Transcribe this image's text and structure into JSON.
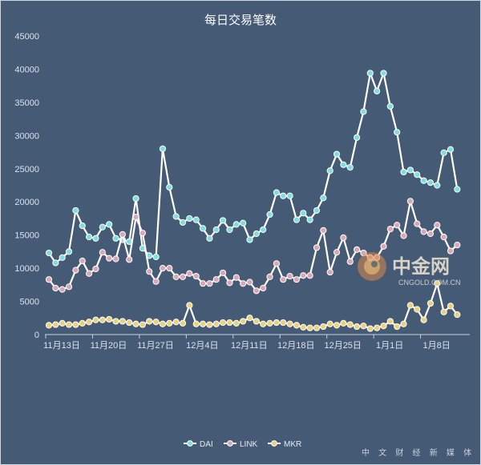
{
  "chart_data": {
    "type": "line",
    "title": "每日交易笔数",
    "xlabel": "",
    "ylabel": "",
    "ylim": [
      0,
      45000
    ],
    "yticks": [
      0,
      5000,
      10000,
      15000,
      20000,
      25000,
      30000,
      35000,
      40000,
      45000
    ],
    "xtick_labels": [
      {
        "index": 0,
        "label": "11月13日"
      },
      {
        "index": 7,
        "label": "11月20日"
      },
      {
        "index": 14,
        "label": "11月27日"
      },
      {
        "index": 21,
        "label": "12月4日"
      },
      {
        "index": 28,
        "label": "12月11日"
      },
      {
        "index": 35,
        "label": "12月18日"
      },
      {
        "index": 42,
        "label": "12月25日"
      },
      {
        "index": 49,
        "label": "1月1日"
      },
      {
        "index": 56,
        "label": "1月8日"
      }
    ],
    "grid": false,
    "legend_position": "bottom",
    "series": [
      {
        "name": "DAI",
        "color": "#7fdede",
        "values": [
          12300,
          10800,
          11600,
          12500,
          18700,
          16400,
          14700,
          14500,
          16200,
          16600,
          14500,
          14300,
          14000,
          20500,
          13000,
          11900,
          11700,
          28000,
          22200,
          17800,
          16900,
          17500,
          17300,
          16000,
          14500,
          15800,
          17200,
          15800,
          16600,
          16800,
          14300,
          15200,
          15800,
          18100,
          21400,
          20900,
          20900,
          17300,
          18300,
          17300,
          18700,
          20600,
          24700,
          27200,
          25600,
          25200,
          29700,
          33600,
          39400,
          36700,
          39400,
          34400,
          30500,
          24500,
          24800,
          24100,
          23200,
          22900,
          22500,
          27400,
          27900,
          21900
        ]
      },
      {
        "name": "LINK",
        "color": "#d9a7b7",
        "values": [
          8300,
          7000,
          6800,
          7200,
          9700,
          11100,
          9200,
          9900,
          12400,
          11500,
          11400,
          15100,
          11300,
          17700,
          15300,
          9500,
          8000,
          10000,
          10000,
          8700,
          8700,
          9200,
          8800,
          7700,
          7700,
          8300,
          9300,
          7800,
          8600,
          7700,
          7900,
          6600,
          7000,
          8700,
          10700,
          8300,
          8800,
          8300,
          8900,
          8900,
          13100,
          15700,
          9400,
          12400,
          14600,
          11000,
          12800,
          12300,
          11600,
          11600,
          13300,
          15900,
          16500,
          14900,
          20100,
          16700,
          15500,
          15200,
          16500,
          14700,
          12600,
          13500
        ]
      },
      {
        "name": "MKR",
        "color": "#e9d27a",
        "values": [
          1400,
          1500,
          1700,
          1500,
          1500,
          1700,
          1900,
          2200,
          2200,
          2300,
          2000,
          2000,
          1800,
          1600,
          1500,
          2000,
          1900,
          1600,
          1700,
          1900,
          1700,
          4400,
          1600,
          1600,
          1500,
          1600,
          1800,
          1800,
          1700,
          2000,
          2500,
          2000,
          1600,
          1700,
          1800,
          1800,
          1600,
          1400,
          1100,
          1000,
          1000,
          1200,
          1600,
          1400,
          1700,
          1500,
          1200,
          1300,
          900,
          1000,
          1300,
          2000,
          1200,
          1600,
          4400,
          3800,
          2200,
          4700,
          7700,
          3400,
          4300,
          3000
        ]
      }
    ]
  },
  "watermark": {
    "name": "中金网",
    "domain": "CNGOLD.COM.CN",
    "tagline": "中 文 财 经 新 媒 体"
  }
}
